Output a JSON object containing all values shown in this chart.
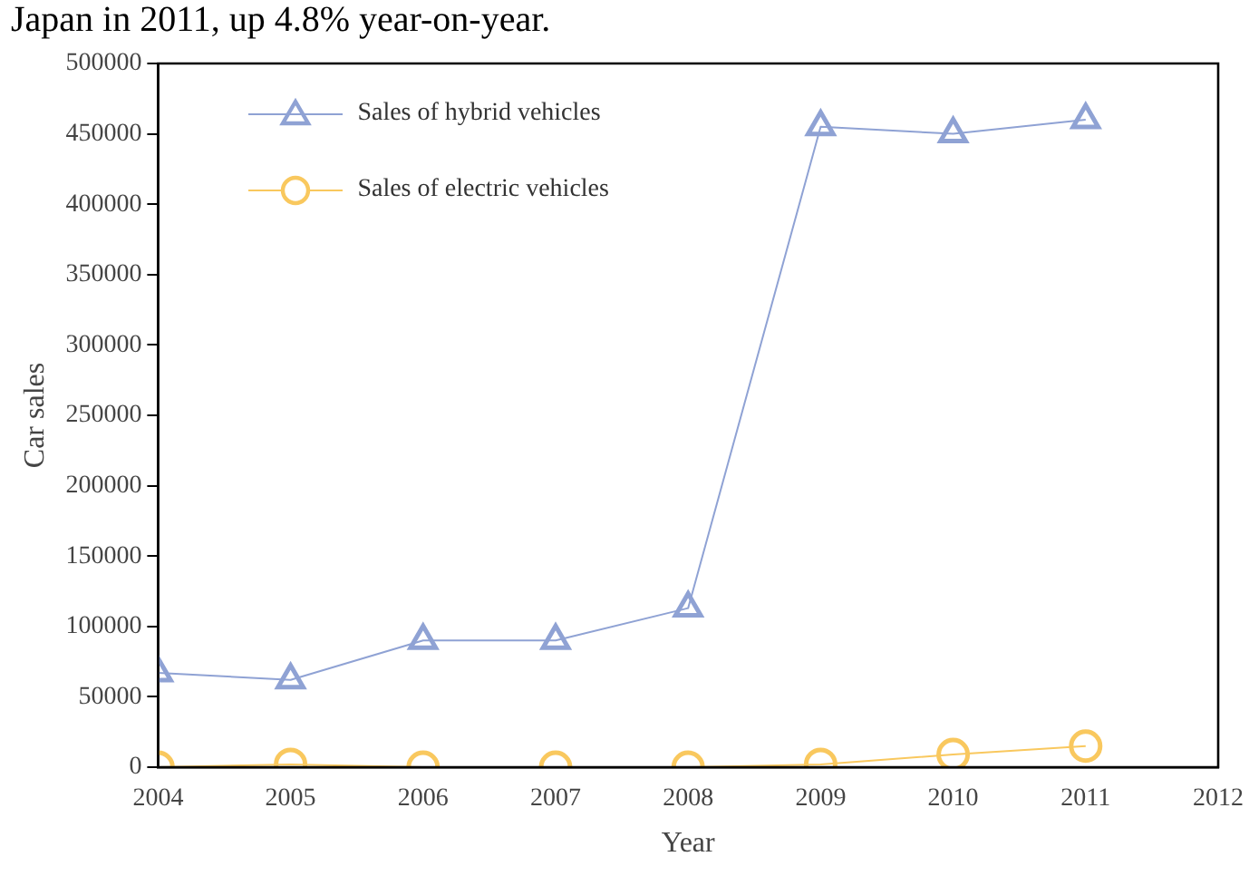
{
  "chart_data": {
    "type": "line",
    "xlabel": "Year",
    "ylabel": "Car sales",
    "annotations": [
      "Japan in 2011, up 4.8% year-on-year."
    ],
    "x": [
      2004,
      2005,
      2006,
      2007,
      2008,
      2009,
      2010,
      2011
    ],
    "series": [
      {
        "name": "Sales of hybrid vehicles",
        "color": "#8fa2d4",
        "marker": "triangle",
        "values": [
          67000,
          62000,
          90000,
          90000,
          113000,
          455000,
          450000,
          460000
        ]
      },
      {
        "name": "Sales of electric vehicles",
        "color": "#f9c85e",
        "marker": "circle",
        "values": [
          0,
          2000,
          0,
          0,
          0,
          2000,
          9000,
          15000
        ]
      }
    ],
    "xlim": [
      2004,
      2012
    ],
    "xticks": [
      2004,
      2005,
      2006,
      2007,
      2008,
      2009,
      2010,
      2011,
      2012
    ],
    "ylim": [
      0,
      500000
    ],
    "yticks": [
      0,
      50000,
      100000,
      150000,
      200000,
      250000,
      300000,
      350000,
      400000,
      450000,
      500000
    ],
    "grid": false,
    "legend": "top left"
  }
}
